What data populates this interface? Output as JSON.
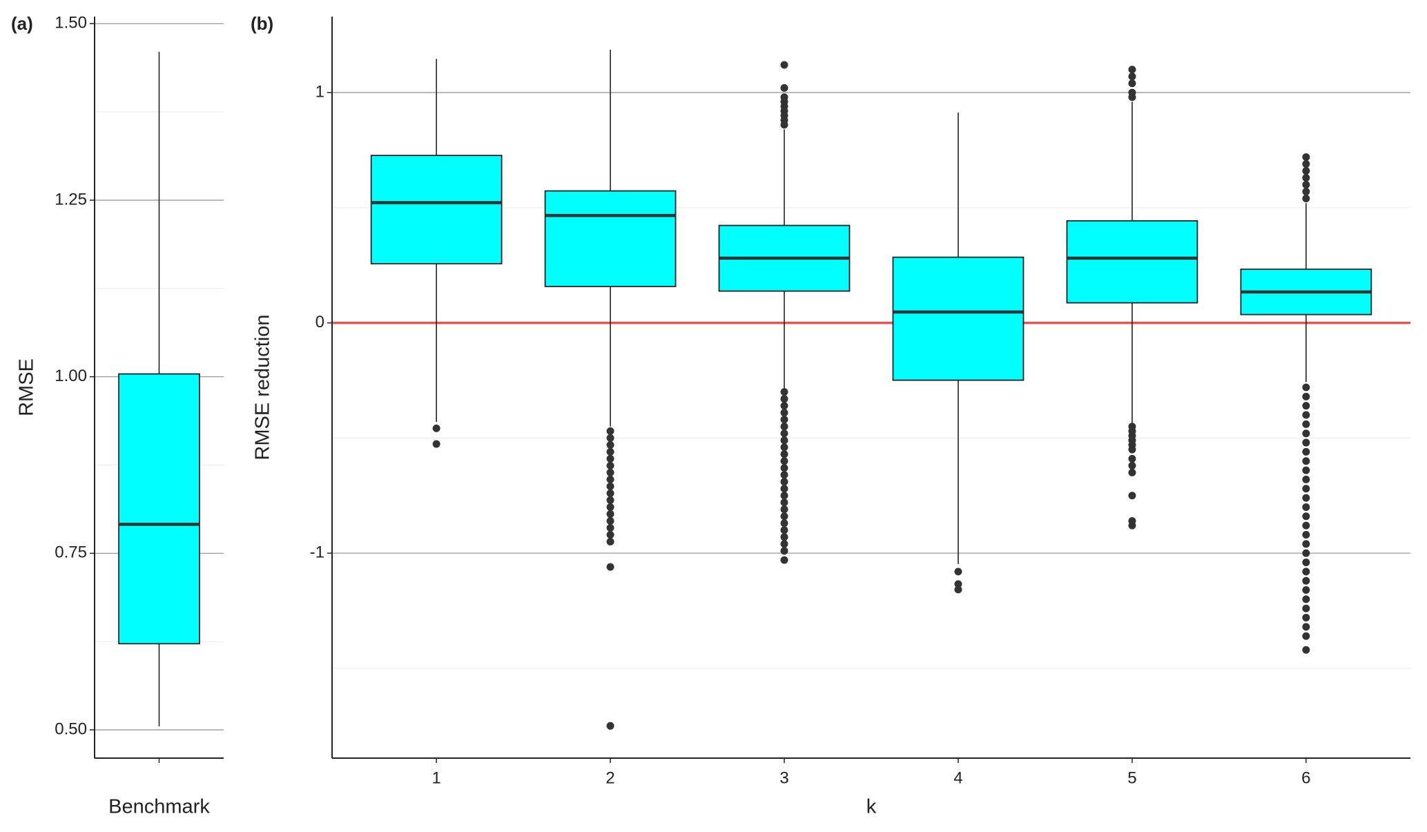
{
  "chart_data": [
    {
      "type": "box",
      "panel_label": "(a)",
      "ylabel": "RMSE",
      "ylim": [
        0.46,
        1.51
      ],
      "yticks": [
        {
          "value": 0.5,
          "label": "0.50"
        },
        {
          "value": 0.75,
          "label": "0.75"
        },
        {
          "value": 1.0,
          "label": "1.00"
        },
        {
          "value": 1.25,
          "label": "1.25"
        },
        {
          "value": 1.5,
          "label": "1.50"
        }
      ],
      "minor_yticks": [
        0.625,
        0.875,
        1.125,
        1.375
      ],
      "grid": true,
      "color": "#00ffff",
      "boxes": [
        {
          "category": "Benchmark",
          "whisker_low": 0.505,
          "q1": 0.622,
          "median": 0.791,
          "q3": 1.004,
          "whisker_high": 1.46,
          "outliers": []
        }
      ]
    },
    {
      "type": "box",
      "panel_label": "(b)",
      "ylabel": "RMSE reduction",
      "xlabel": "k",
      "ylim": [
        -1.89,
        1.33
      ],
      "yticks": [
        -1,
        0,
        1
      ],
      "minor_yticks": [
        -1.5,
        -0.5,
        0.5
      ],
      "grid": true,
      "color": "#00ffff",
      "hline": {
        "value": 0,
        "color": "#e8534f"
      },
      "boxes": [
        {
          "category": "1",
          "whisker_low": -0.43,
          "q1": 0.257,
          "median": 0.522,
          "q3": 0.727,
          "whisker_high": 1.146,
          "outliers": [
            -0.458,
            -0.526
          ]
        },
        {
          "category": "2",
          "whisker_low": -0.45,
          "q1": 0.158,
          "median": 0.466,
          "q3": 0.573,
          "whisker_high": 1.186,
          "outliers": [
            -0.47,
            -0.5,
            -0.53,
            -0.56,
            -0.59,
            -0.62,
            -0.65,
            -0.68,
            -0.71,
            -0.74,
            -0.77,
            -0.8,
            -0.83,
            -0.86,
            -0.89,
            -0.92,
            -0.95,
            -1.06,
            -1.75
          ]
        },
        {
          "category": "3",
          "whisker_low": -0.29,
          "q1": 0.138,
          "median": 0.281,
          "q3": 0.423,
          "whisker_high": 0.84,
          "outliers": [
            0.86,
            0.88,
            0.9,
            0.92,
            0.94,
            0.96,
            0.98,
            1.02,
            1.12,
            -0.3,
            -0.33,
            -0.36,
            -0.39,
            -0.42,
            -0.45,
            -0.48,
            -0.51,
            -0.54,
            -0.57,
            -0.6,
            -0.63,
            -0.66,
            -0.69,
            -0.72,
            -0.75,
            -0.78,
            -0.81,
            -0.84,
            -0.87,
            -0.9,
            -0.93,
            -0.96,
            -0.99,
            -1.03
          ]
        },
        {
          "category": "4",
          "whisker_low": -1.047,
          "q1": -0.249,
          "median": 0.047,
          "q3": 0.285,
          "whisker_high": 0.913,
          "outliers": [
            -1.08,
            -1.134,
            -1.158
          ]
        },
        {
          "category": "5",
          "whisker_low": -0.435,
          "q1": 0.087,
          "median": 0.281,
          "q3": 0.443,
          "whisker_high": 0.96,
          "outliers": [
            0.98,
            1.0,
            1.04,
            1.07,
            1.1,
            -0.45,
            -0.47,
            -0.49,
            -0.51,
            -0.53,
            -0.55,
            -0.59,
            -0.62,
            -0.65,
            -0.75,
            -0.86,
            -0.88
          ]
        },
        {
          "category": "6",
          "whisker_low": -0.257,
          "q1": 0.036,
          "median": 0.134,
          "q3": 0.233,
          "whisker_high": 0.52,
          "outliers": [
            0.54,
            0.57,
            0.6,
            0.63,
            0.66,
            0.69,
            0.72,
            -0.28,
            -0.32,
            -0.36,
            -0.4,
            -0.44,
            -0.48,
            -0.52,
            -0.56,
            -0.6,
            -0.64,
            -0.68,
            -0.72,
            -0.76,
            -0.8,
            -0.84,
            -0.88,
            -0.92,
            -0.96,
            -1.0,
            -1.04,
            -1.08,
            -1.12,
            -1.16,
            -1.2,
            -1.24,
            -1.28,
            -1.32,
            -1.36,
            -1.42
          ]
        }
      ]
    }
  ]
}
